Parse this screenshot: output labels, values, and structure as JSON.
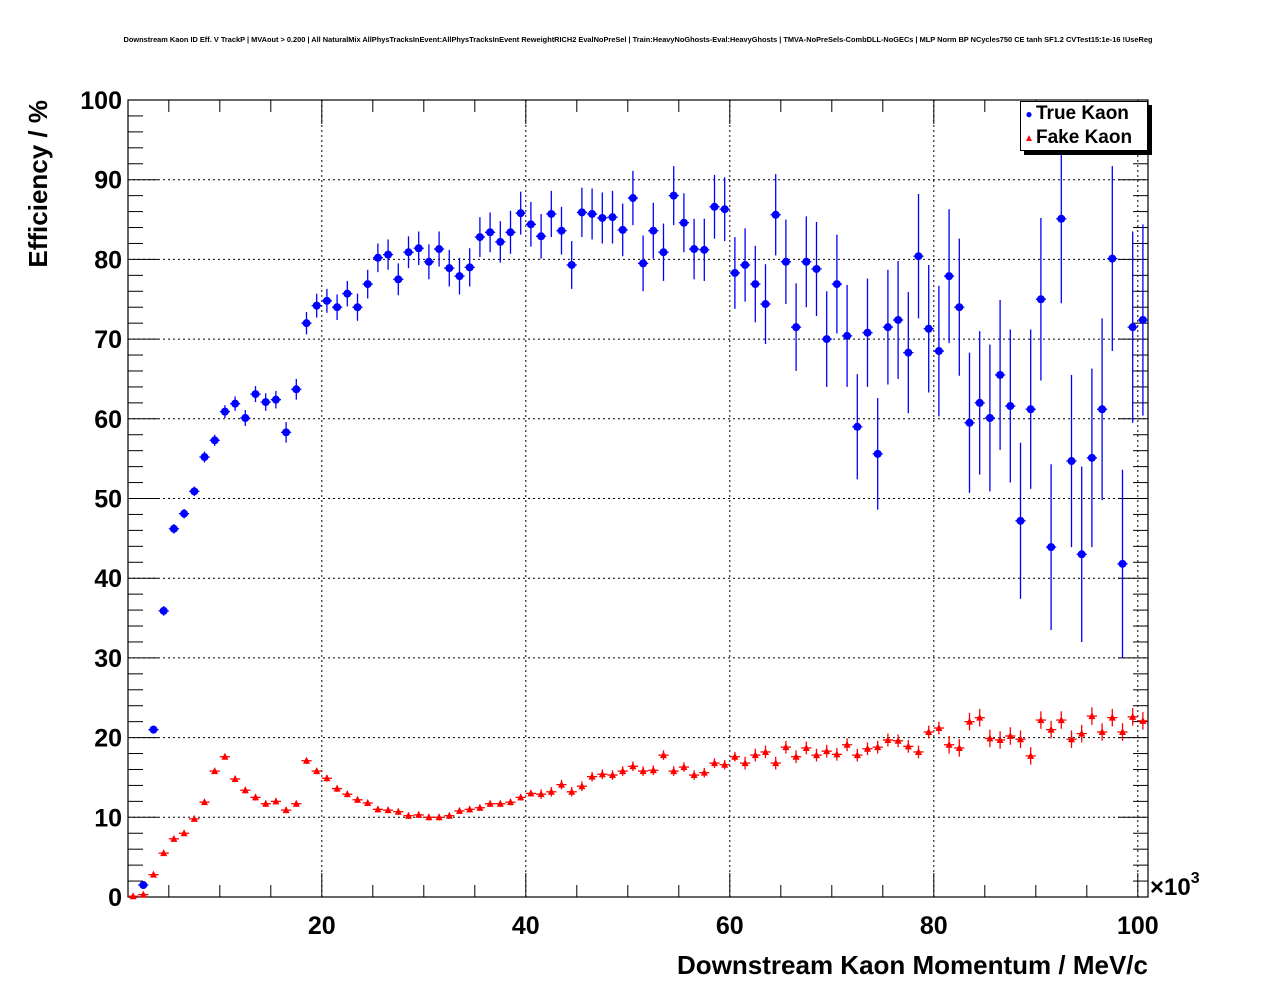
{
  "chart_data": {
    "type": "scatter",
    "title": "Downstream Kaon ID Eff. V TrackP | MVAout > 0.200 | All NaturalMix AllPhysTracksInEvent:AllPhysTracksInEvent ReweightRICH2 EvalNoPreSel | Train:HeavyNoGhosts-Eval:HeavyGhosts | TMVA-NoPreSels-CombDLL-NoGECs | MLP Norm BP NCycles750 CE tanh SF1.2 CVTest15:1e-16 !UseReg",
    "xlabel": "Downstream Kaon Momentum / MeV/c",
    "ylabel": "Efficiency / %",
    "x_multiplier": "×10",
    "x_multiplier_exp": "3",
    "xlim": [
      1,
      101
    ],
    "ylim": [
      0,
      100
    ],
    "xticks": [
      "20",
      "40",
      "60",
      "80",
      "100"
    ],
    "yticks": [
      "0",
      "10",
      "20",
      "30",
      "40",
      "50",
      "60",
      "70",
      "80",
      "90",
      "100"
    ],
    "grid": true,
    "legend_position": "top-right",
    "x_start": 1.5,
    "x_step": 1,
    "xerr": 0.5,
    "series": [
      {
        "name": "True Kaon",
        "color": "#0000ff",
        "marker": "circle",
        "values": [
          null,
          1.5,
          21.0,
          35.9,
          46.2,
          48.1,
          50.9,
          55.2,
          57.3,
          60.9,
          61.9,
          60.1,
          63.1,
          62.1,
          62.4,
          58.3,
          63.7,
          72.0,
          74.2,
          74.8,
          74.0,
          75.7,
          74.0,
          76.9,
          80.2,
          80.6,
          77.5,
          80.9,
          81.4,
          79.7,
          81.3,
          78.9,
          77.9,
          79.0,
          82.8,
          83.4,
          82.2,
          83.4,
          85.8,
          84.4,
          82.9,
          85.7,
          83.6,
          79.3,
          85.9,
          85.7,
          85.2,
          85.3,
          83.7,
          87.7,
          79.5,
          83.6,
          80.9,
          88.0,
          84.6,
          81.3,
          81.2,
          86.6,
          86.3,
          78.3,
          79.3,
          76.9,
          74.4,
          85.6,
          79.7,
          71.5,
          79.7,
          78.8,
          70.0,
          76.9,
          70.4,
          59.0,
          70.8,
          55.6,
          71.5,
          72.4,
          68.3,
          80.4,
          71.3,
          68.5,
          77.9,
          74.0,
          59.5,
          62.0,
          60.1,
          65.5,
          61.6,
          47.2,
          61.2,
          75.0,
          43.9,
          85.1,
          54.7,
          43.0,
          55.1,
          61.2,
          80.1,
          41.8,
          71.5,
          72.4
        ],
        "yerr": [
          null,
          0.3,
          0.5,
          0.6,
          0.6,
          0.6,
          0.6,
          0.7,
          0.7,
          0.8,
          0.9,
          1.0,
          1.0,
          1.1,
          1.1,
          1.3,
          1.3,
          1.4,
          1.5,
          1.5,
          1.6,
          1.6,
          1.7,
          1.8,
          1.8,
          1.9,
          2.0,
          2.0,
          2.1,
          2.2,
          2.2,
          2.3,
          2.3,
          2.4,
          2.5,
          2.5,
          2.6,
          2.7,
          2.7,
          2.8,
          2.8,
          2.9,
          3.0,
          3.0,
          3.1,
          3.2,
          3.2,
          3.3,
          3.3,
          3.4,
          3.5,
          3.5,
          3.6,
          3.7,
          3.7,
          3.8,
          3.9,
          4.0,
          4.0,
          4.5,
          4.6,
          4.8,
          5.0,
          5.1,
          5.3,
          5.5,
          5.7,
          5.9,
          6.0,
          6.2,
          6.4,
          6.6,
          6.8,
          7.0,
          7.2,
          7.4,
          7.6,
          7.8,
          8.0,
          8.2,
          8.4,
          8.6,
          8.8,
          9.0,
          9.2,
          9.4,
          9.6,
          9.8,
          10.0,
          10.2,
          10.4,
          10.6,
          10.8,
          11.0,
          11.2,
          11.4,
          11.6,
          11.8,
          12.0,
          12.0
        ]
      },
      {
        "name": "Fake Kaon",
        "color": "#ff0000",
        "marker": "triangle",
        "values": [
          0.1,
          0.3,
          2.8,
          5.5,
          7.3,
          8.0,
          9.8,
          11.9,
          15.8,
          17.6,
          14.8,
          13.4,
          12.5,
          11.7,
          12.0,
          10.9,
          11.7,
          17.1,
          15.8,
          14.9,
          13.6,
          12.9,
          12.2,
          11.8,
          11.0,
          10.9,
          10.7,
          10.2,
          10.3,
          10.0,
          10.0,
          10.2,
          10.8,
          11.0,
          11.2,
          11.7,
          11.7,
          11.9,
          12.5,
          13.0,
          12.9,
          13.2,
          14.1,
          13.2,
          13.9,
          15.1,
          15.4,
          15.3,
          15.8,
          16.4,
          15.8,
          15.9,
          17.8,
          15.8,
          16.3,
          15.3,
          15.6,
          16.8,
          16.6,
          17.6,
          16.8,
          17.8,
          18.2,
          16.8,
          18.8,
          17.6,
          18.7,
          17.8,
          18.3,
          17.9,
          19.1,
          17.8,
          18.6,
          18.8,
          19.7,
          19.6,
          18.9,
          18.2,
          20.7,
          21.2,
          19.1,
          18.7,
          22.0,
          22.5,
          19.9,
          19.7,
          20.2,
          19.8,
          17.7,
          22.2,
          21.0,
          22.2,
          19.8,
          20.5,
          22.7,
          20.7,
          22.5,
          20.7,
          22.6,
          22.1
        ],
        "yerr": [
          0.2,
          0.2,
          0.3,
          0.3,
          0.3,
          0.3,
          0.3,
          0.3,
          0.3,
          0.3,
          0.4,
          0.4,
          0.4,
          0.4,
          0.4,
          0.4,
          0.4,
          0.4,
          0.4,
          0.4,
          0.4,
          0.4,
          0.4,
          0.4,
          0.4,
          0.4,
          0.4,
          0.4,
          0.4,
          0.4,
          0.4,
          0.4,
          0.4,
          0.4,
          0.4,
          0.4,
          0.4,
          0.4,
          0.4,
          0.4,
          0.6,
          0.6,
          0.6,
          0.6,
          0.6,
          0.6,
          0.6,
          0.6,
          0.6,
          0.6,
          0.6,
          0.6,
          0.6,
          0.6,
          0.6,
          0.6,
          0.6,
          0.6,
          0.6,
          0.6,
          0.8,
          0.8,
          0.8,
          0.8,
          0.8,
          0.8,
          0.8,
          0.8,
          0.8,
          0.8,
          0.8,
          0.8,
          0.8,
          0.8,
          0.8,
          0.8,
          0.8,
          0.8,
          0.8,
          0.8,
          1.1,
          1.1,
          1.1,
          1.1,
          1.1,
          1.1,
          1.1,
          1.1,
          1.1,
          1.1,
          1.1,
          1.1,
          1.1,
          1.1,
          1.1,
          1.1,
          1.1,
          1.1,
          1.1,
          1.1
        ]
      }
    ]
  }
}
